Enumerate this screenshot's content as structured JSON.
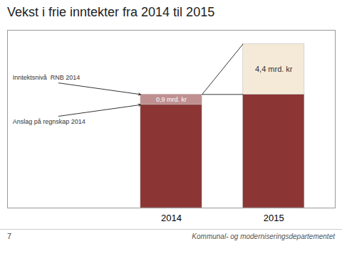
{
  "chart_data": {
    "type": "bar",
    "stacked": true,
    "title": "Vekst i frie inntekter fra 2014 til 2015",
    "categories": [
      "2014",
      "2015"
    ],
    "series": [
      {
        "color": "#8B3535",
        "values": [
          9.0,
          9.9
        ]
      },
      {
        "color": "#C09090",
        "values": [
          0.9,
          null
        ],
        "value_labels": [
          "0,9 mrd. kr",
          null
        ]
      },
      {
        "color": "#F5EAD8",
        "values": [
          null,
          4.4
        ],
        "value_labels": [
          null,
          "4,4 mrd. kr"
        ]
      }
    ],
    "ylim": [
      0,
      15.5
    ],
    "yticks": [],
    "tick_labels": "x",
    "data_labels": true,
    "grid": false,
    "annotations": [
      "Inntektsnivå  RNB 2014",
      "Anslag på regnskap 2014"
    ],
    "footer": [
      "7",
      "Kommunal- og moderniseringsdepartementet"
    ]
  }
}
